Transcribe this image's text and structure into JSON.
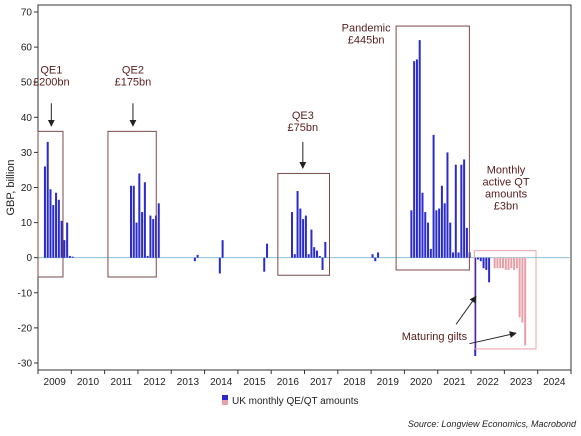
{
  "chart_data": {
    "type": "bar",
    "ylabel": "GBP, billion",
    "ylim": [
      -32,
      72
    ],
    "yticks": [
      -30,
      -20,
      -10,
      0,
      10,
      20,
      30,
      40,
      50,
      60,
      70
    ],
    "xlim": [
      2009,
      2025
    ],
    "xticks": [
      "2009",
      "2010",
      "2011",
      "2012",
      "2013",
      "2014",
      "2015",
      "2016",
      "2017",
      "2018",
      "2019",
      "2020",
      "2021",
      "2022",
      "2023",
      "2024"
    ],
    "legend": {
      "label": "UK monthly QE/QT amounts",
      "position": "bottom"
    },
    "source": "Source: Longview Economics, Macrobond",
    "series": [
      {
        "name": "QE",
        "color": "#2b2bcc",
        "points": [
          {
            "x": "2009-03",
            "y": 26
          },
          {
            "x": "2009-04",
            "y": 33
          },
          {
            "x": "2009-05",
            "y": 19.5
          },
          {
            "x": "2009-06",
            "y": 15
          },
          {
            "x": "2009-07",
            "y": 18.5
          },
          {
            "x": "2009-08",
            "y": 16.5
          },
          {
            "x": "2009-09",
            "y": 10.5
          },
          {
            "x": "2009-10",
            "y": 5
          },
          {
            "x": "2009-11",
            "y": 10
          },
          {
            "x": "2009-12",
            "y": 0.5
          },
          {
            "x": "2010-01",
            "y": 0.3
          },
          {
            "x": "2011-10",
            "y": 20.5
          },
          {
            "x": "2011-11",
            "y": 20.5
          },
          {
            "x": "2011-12",
            "y": 10
          },
          {
            "x": "2012-01",
            "y": 24
          },
          {
            "x": "2012-02",
            "y": 13
          },
          {
            "x": "2012-03",
            "y": 21.5
          },
          {
            "x": "2012-04",
            "y": 0.5
          },
          {
            "x": "2012-05",
            "y": 12
          },
          {
            "x": "2012-06",
            "y": 11
          },
          {
            "x": "2012-07",
            "y": 12
          },
          {
            "x": "2012-08",
            "y": 15.5
          },
          {
            "x": "2013-09",
            "y": -1
          },
          {
            "x": "2013-10",
            "y": 0.8
          },
          {
            "x": "2014-06",
            "y": -4.5
          },
          {
            "x": "2014-07",
            "y": 5
          },
          {
            "x": "2015-10",
            "y": -4
          },
          {
            "x": "2015-11",
            "y": 4
          },
          {
            "x": "2016-08",
            "y": 13
          },
          {
            "x": "2016-09",
            "y": 1
          },
          {
            "x": "2016-10",
            "y": 19
          },
          {
            "x": "2016-11",
            "y": 14
          },
          {
            "x": "2016-12",
            "y": 11
          },
          {
            "x": "2017-01",
            "y": 12
          },
          {
            "x": "2017-02",
            "y": 1
          },
          {
            "x": "2017-03",
            "y": 8
          },
          {
            "x": "2017-04",
            "y": 3
          },
          {
            "x": "2017-05",
            "y": 2
          },
          {
            "x": "2017-06",
            "y": 0.5
          },
          {
            "x": "2017-07",
            "y": -3.5
          },
          {
            "x": "2017-08",
            "y": 4.5
          },
          {
            "x": "2019-01",
            "y": 1
          },
          {
            "x": "2019-02",
            "y": -1
          },
          {
            "x": "2019-03",
            "y": 1.5
          },
          {
            "x": "2020-03",
            "y": 13.5
          },
          {
            "x": "2020-04",
            "y": 56
          },
          {
            "x": "2020-05",
            "y": 56.5
          },
          {
            "x": "2020-06",
            "y": 62
          },
          {
            "x": "2020-07",
            "y": 18.5
          },
          {
            "x": "2020-08",
            "y": 13
          },
          {
            "x": "2020-09",
            "y": 10
          },
          {
            "x": "2020-10",
            "y": 2.5
          },
          {
            "x": "2020-11",
            "y": 35
          },
          {
            "x": "2020-12",
            "y": 13.5
          },
          {
            "x": "2021-01",
            "y": 14
          },
          {
            "x": "2021-02",
            "y": 20.5
          },
          {
            "x": "2021-03",
            "y": 15.5
          },
          {
            "x": "2021-04",
            "y": 30
          },
          {
            "x": "2021-05",
            "y": 10
          },
          {
            "x": "2021-06",
            "y": 1.5
          },
          {
            "x": "2021-07",
            "y": 26.5
          },
          {
            "x": "2021-08",
            "y": 1.5
          },
          {
            "x": "2021-09",
            "y": 26.5
          },
          {
            "x": "2021-10",
            "y": 28
          },
          {
            "x": "2021-11",
            "y": 8.5
          },
          {
            "x": "2021-12",
            "y": 1.5
          },
          {
            "x": "2022-02",
            "y": -28
          },
          {
            "x": "2022-03",
            "y": -0.5
          },
          {
            "x": "2022-04",
            "y": -1
          },
          {
            "x": "2022-05",
            "y": -3
          },
          {
            "x": "2022-06",
            "y": -3.5
          },
          {
            "x": "2022-07",
            "y": -7
          }
        ]
      },
      {
        "name": "QT",
        "color": "#e8a0a8",
        "points": [
          {
            "x": "2022-09",
            "y": -3
          },
          {
            "x": "2022-10",
            "y": -3
          },
          {
            "x": "2022-11",
            "y": -3
          },
          {
            "x": "2022-12",
            "y": -3
          },
          {
            "x": "2023-01",
            "y": -3.5
          },
          {
            "x": "2023-02",
            "y": -3.5
          },
          {
            "x": "2023-03",
            "y": -3
          },
          {
            "x": "2023-04",
            "y": -3.5
          },
          {
            "x": "2023-05",
            "y": -3
          },
          {
            "x": "2023-06",
            "y": -17
          },
          {
            "x": "2023-07",
            "y": -18.5
          },
          {
            "x": "2023-08",
            "y": -25
          }
        ]
      }
    ],
    "annotations": [
      {
        "id": "qe1",
        "lines": [
          "QE1",
          "£200bn"
        ]
      },
      {
        "id": "qe2",
        "lines": [
          "QE2",
          "£175bn"
        ]
      },
      {
        "id": "qe3",
        "lines": [
          "QE3",
          "£75bn"
        ]
      },
      {
        "id": "pandemic",
        "lines": [
          "Pandemic",
          "£445bn"
        ]
      },
      {
        "id": "qt",
        "lines": [
          "Monthly",
          "active QT",
          "amounts",
          "£3bn"
        ]
      },
      {
        "id": "maturing",
        "lines": [
          "Maturing gilts"
        ]
      }
    ]
  }
}
